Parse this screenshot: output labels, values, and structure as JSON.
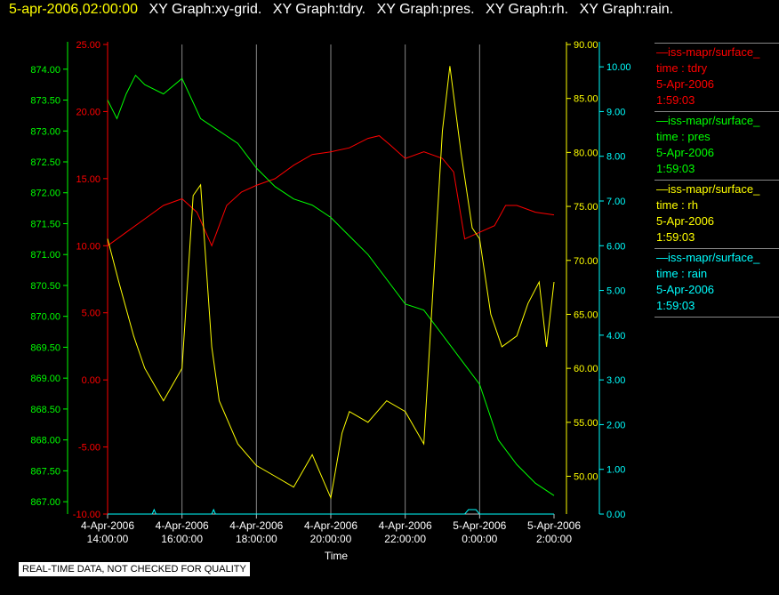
{
  "header": {
    "timestamp": "5-apr-2006,02:00:00",
    "graphs": [
      "XY Graph:xy-grid.",
      "XY Graph:tdry.",
      "XY Graph:pres.",
      "XY Graph:rh.",
      "XY Graph:rain."
    ]
  },
  "note": "REAL-TIME DATA, NOT CHECKED FOR QUALITY",
  "colors": {
    "tdry": "#ff0000",
    "pres": "#00ff00",
    "rh": "#ffff00",
    "rain": "#00ffff",
    "grid": "#888888",
    "axis_text": "#ffffff"
  },
  "legend": [
    {
      "name": "—iss-mapr/surface_",
      "var": "time : tdry",
      "date": "5-Apr-2006",
      "time": "1:59:03",
      "color": "#ff0000"
    },
    {
      "name": "—iss-mapr/surface_",
      "var": "time : pres",
      "date": "5-Apr-2006",
      "time": "1:59:03",
      "color": "#00ff00"
    },
    {
      "name": "—iss-mapr/surface_",
      "var": "time : rh",
      "date": "5-Apr-2006",
      "time": "1:59:03",
      "color": "#ffff00"
    },
    {
      "name": "—iss-mapr/surface_",
      "var": "time : rain",
      "date": "5-Apr-2006",
      "time": "1:59:03",
      "color": "#00ffff"
    }
  ],
  "chart_data": {
    "type": "line",
    "xlabel": "Time",
    "x_ticks": [
      [
        "4-Apr-2006",
        "14:00:00"
      ],
      [
        "4-Apr-2006",
        "16:00:00"
      ],
      [
        "4-Apr-2006",
        "18:00:00"
      ],
      [
        "4-Apr-2006",
        "20:00:00"
      ],
      [
        "4-Apr-2006",
        "22:00:00"
      ],
      [
        "5-Apr-2006",
        "0:00:00"
      ],
      [
        "5-Apr-2006",
        "2:00:00"
      ]
    ],
    "xlim": [
      0,
      12
    ],
    "x_unit": "hours after 4-Apr-2006 14:00:00",
    "grid": true,
    "axes": {
      "pres": {
        "ylim": [
          866.8,
          874.4
        ],
        "ticks": [
          "874.00",
          "873.50",
          "873.00",
          "872.50",
          "872.00",
          "871.50",
          "871.00",
          "870.50",
          "870.00",
          "869.50",
          "869.00",
          "868.50",
          "868.00",
          "867.50",
          "867.00"
        ]
      },
      "tdry": {
        "ylim": [
          -10,
          25
        ],
        "ticks": [
          "25.00",
          "20.00",
          "15.00",
          "10.00",
          "5.00",
          "0.00",
          "-5.00",
          "-10.00"
        ]
      },
      "rh": {
        "ylim": [
          46.5,
          90
        ],
        "ticks": [
          "90.00",
          "85.00",
          "80.00",
          "75.00",
          "70.00",
          "65.00",
          "60.00",
          "55.00",
          "50.00"
        ]
      },
      "rain": {
        "ylim": [
          0,
          10.5
        ],
        "ticks": [
          "10.00",
          "9.00",
          "8.00",
          "7.00",
          "6.00",
          "5.00",
          "4.00",
          "3.00",
          "2.00",
          "1.00",
          "0.00"
        ]
      }
    },
    "series": [
      {
        "name": "tdry",
        "color": "#ff0000",
        "x": [
          0,
          0.5,
          1,
          1.5,
          2,
          2.4,
          2.8,
          3.2,
          3.6,
          4,
          4.5,
          5,
          5.5,
          6,
          6.5,
          7,
          7.3,
          7.6,
          8,
          8.5,
          9,
          9.3,
          9.6,
          10,
          10.4,
          10.7,
          11,
          11.5,
          12
        ],
        "y": [
          10,
          11,
          12,
          13,
          13.5,
          12.5,
          10,
          13,
          14,
          14.5,
          15,
          16,
          16.8,
          17,
          17.3,
          18,
          18.2,
          17.5,
          16.5,
          17,
          16.5,
          15.5,
          10.5,
          11,
          11.5,
          13,
          13,
          12.5,
          12.3
        ]
      },
      {
        "name": "pres",
        "color": "#00ff00",
        "x": [
          0,
          0.25,
          0.5,
          0.75,
          1,
          1.5,
          2,
          2.5,
          3,
          3.5,
          4,
          4.5,
          5,
          5.5,
          6,
          6.5,
          7,
          7.5,
          8,
          8.5,
          9,
          9.5,
          10,
          10.5,
          11,
          11.5,
          12
        ],
        "y": [
          873.5,
          873.2,
          873.6,
          873.9,
          873.75,
          873.6,
          873.85,
          873.2,
          873.0,
          872.8,
          872.4,
          872.1,
          871.9,
          871.8,
          871.6,
          871.3,
          871.0,
          870.6,
          870.2,
          870.1,
          869.7,
          869.3,
          868.9,
          868.0,
          867.6,
          867.3,
          867.1
        ]
      },
      {
        "name": "rh",
        "color": "#ffff00",
        "x": [
          0,
          0.3,
          0.7,
          1,
          1.5,
          2,
          2.3,
          2.5,
          2.6,
          2.8,
          3,
          3.5,
          4,
          4.5,
          5,
          5.5,
          6,
          6.3,
          6.5,
          7,
          7.5,
          8,
          8.5,
          9,
          9.2,
          9.5,
          9.8,
          10,
          10.3,
          10.6,
          11,
          11.3,
          11.6,
          11.8,
          12
        ],
        "y": [
          72,
          68,
          63,
          60,
          57,
          60,
          76,
          77,
          72,
          62,
          57,
          53,
          51,
          50,
          49,
          52,
          48,
          54,
          56,
          55,
          57,
          56,
          53,
          82,
          88,
          80,
          73,
          72,
          65,
          62,
          63,
          66,
          68,
          62,
          68
        ]
      },
      {
        "name": "rain",
        "color": "#00ffff",
        "x": [
          0,
          1.2,
          1.25,
          1.3,
          2,
          2.8,
          2.85,
          2.9,
          3,
          9.6,
          9.7,
          9.8,
          9.9,
          10,
          12
        ],
        "y": [
          0,
          0,
          0.1,
          0,
          0,
          0,
          0.1,
          0,
          0,
          0,
          0.1,
          0.1,
          0.1,
          0,
          0
        ]
      }
    ]
  }
}
